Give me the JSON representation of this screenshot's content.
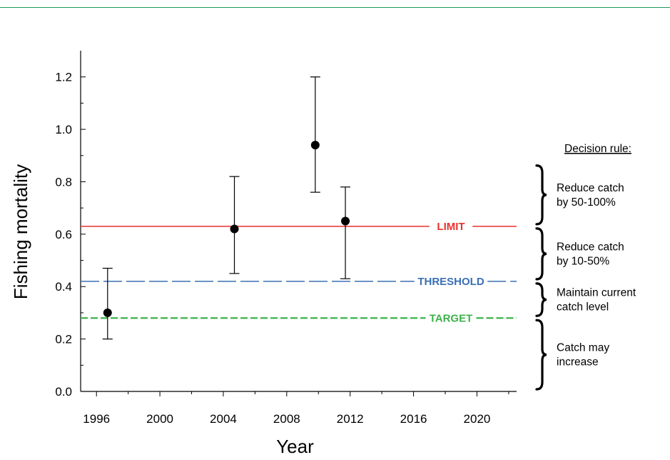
{
  "chart_data": {
    "type": "scatter",
    "title": "",
    "xlabel": "Year",
    "ylabel": "Fishing mortality",
    "xlim": [
      1995,
      2022.5
    ],
    "ylim": [
      0.0,
      1.3
    ],
    "xticks": [
      1996,
      2000,
      2004,
      2008,
      2012,
      2016,
      2020
    ],
    "yticks": [
      0.0,
      0.2,
      0.4,
      0.6,
      0.8,
      1.0,
      1.2
    ],
    "series": [
      {
        "points": [
          {
            "x": 1996.7,
            "y": 0.3,
            "lower": 0.2,
            "upper": 0.47
          },
          {
            "x": 2004.7,
            "y": 0.62,
            "lower": 0.45,
            "upper": 0.82
          },
          {
            "x": 2009.8,
            "y": 0.94,
            "lower": 0.76,
            "upper": 1.2
          },
          {
            "x": 2011.7,
            "y": 0.65,
            "lower": 0.43,
            "upper": 0.78
          }
        ]
      }
    ],
    "reference_lines": [
      {
        "label": "LIMIT",
        "y": 0.63,
        "color": "#e8322e",
        "style": "solid"
      },
      {
        "label": "THRESHOLD",
        "y": 0.42,
        "color": "#3a6fb5",
        "style": "long-dash"
      },
      {
        "label": "TARGET",
        "y": 0.28,
        "color": "#3db24a",
        "style": "dash"
      }
    ],
    "decision_rule": {
      "heading": "Decision rule:",
      "bands": [
        {
          "lines": [
            "Reduce catch",
            "by 50-100%"
          ],
          "range": [
            0.63,
            0.87
          ]
        },
        {
          "lines": [
            "Reduce catch",
            "by 10-50%"
          ],
          "range": [
            0.42,
            0.63
          ]
        },
        {
          "lines": [
            "Maintain current",
            "catch level"
          ],
          "range": [
            0.28,
            0.42
          ]
        },
        {
          "lines": [
            "Catch may",
            "increase"
          ],
          "range": [
            0.0,
            0.28
          ]
        }
      ]
    }
  }
}
